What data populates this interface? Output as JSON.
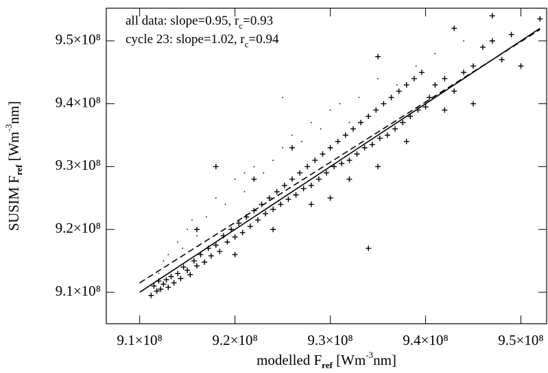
{
  "chart_data": {
    "type": "scatter",
    "xlabel": [
      "modelled F",
      "ref",
      " [Wm",
      "-3",
      "nm]"
    ],
    "ylabel": [
      "SUSIM F",
      "ref",
      " [Wm",
      "-3",
      "nm]"
    ],
    "annotations": [
      [
        "all data: slope=0.95, r",
        "c",
        "=0.93"
      ],
      [
        "cycle 23: slope=1.02, r",
        "c",
        "=0.94"
      ]
    ],
    "xlim": [
      906500000.0,
      952700000.0
    ],
    "ylim": [
      905000000.0,
      955200000.0
    ],
    "xticks": [
      {
        "value": 910000000.0,
        "label": "9.1×10⁸"
      },
      {
        "value": 920000000.0,
        "label": "9.2×10⁸"
      },
      {
        "value": 930000000.0,
        "label": "9.3×10⁸"
      },
      {
        "value": 940000000.0,
        "label": "9.4×10⁸"
      },
      {
        "value": 950000000.0,
        "label": "9.5×10⁸"
      }
    ],
    "yticks": [
      {
        "value": 910000000.0,
        "label": "9.1×10⁸"
      },
      {
        "value": 920000000.0,
        "label": "9.2×10⁸"
      },
      {
        "value": 930000000.0,
        "label": "9.3×10⁸"
      },
      {
        "value": 940000000.0,
        "label": "9.4×10⁸"
      },
      {
        "value": 950000000.0,
        "label": "9.5×10⁸"
      }
    ],
    "series": [
      {
        "marker": "plus",
        "color": "#000000",
        "x": [
          911200000.0,
          911500000.0,
          911800000.0,
          912000000.0,
          912200000.0,
          912500000.0,
          912800000.0,
          913000000.0,
          913300000.0,
          913600000.0,
          914000000.0,
          914300000.0,
          914600000.0,
          915000000.0,
          915300000.0,
          915700000.0,
          916000000.0,
          916400000.0,
          916800000.0,
          917200000.0,
          917500000.0,
          918000000.0,
          918400000.0,
          918800000.0,
          919200000.0,
          919600000.0,
          920000000.0,
          920400000.0,
          920800000.0,
          921200000.0,
          921600000.0,
          922000000.0,
          922400000.0,
          922800000.0,
          923200000.0,
          923600000.0,
          924000000.0,
          924400000.0,
          924800000.0,
          925200000.0,
          925600000.0,
          926000000.0,
          926400000.0,
          926800000.0,
          927200000.0,
          927600000.0,
          928000000.0,
          928400000.0,
          928800000.0,
          929200000.0,
          929600000.0,
          930000000.0,
          930400000.0,
          930800000.0,
          931200000.0,
          931600000.0,
          932000000.0,
          932400000.0,
          932800000.0,
          933200000.0,
          933600000.0,
          934000000.0,
          934400000.0,
          934800000.0,
          935200000.0,
          935600000.0,
          936000000.0,
          936400000.0,
          936800000.0,
          937200000.0,
          937600000.0,
          938000000.0,
          938400000.0,
          938800000.0,
          939200000.0,
          939600000.0,
          940000000.0,
          940400000.0,
          941000000.0,
          942000000.0,
          943000000.0,
          944000000.0,
          945000000.0,
          946000000.0,
          947000000.0,
          948000000.0,
          949000000.0,
          950000000.0,
          952000000.0,
          943000000.0,
          934000000.0,
          918000000.0,
          922000000.0,
          926000000.0,
          930000000.0,
          935000000.0,
          938000000.0,
          942000000.0,
          916000000.0,
          920000000.0,
          924000000.0,
          928000000.0,
          932000000.0,
          935000000.0,
          945000000.0,
          947000000.0
        ],
        "values": [
          909500000.0,
          911000000.0,
          910200000.0,
          911800000.0,
          910500000.0,
          911300000.0,
          912000000.0,
          910800000.0,
          912500000.0,
          911500000.0,
          913000000.0,
          912200000.0,
          914000000.0,
          913500000.0,
          912800000.0,
          915000000.0,
          914200000.0,
          916000000.0,
          914800000.0,
          917000000.0,
          915800000.0,
          917500000.0,
          916500000.0,
          919000000.0,
          918000000.0,
          920000000.0,
          918800000.0,
          921000000.0,
          919500000.0,
          922000000.0,
          920500000.0,
          923000000.0,
          921500000.0,
          924000000.0,
          922500000.0,
          925000000.0,
          923200000.0,
          926000000.0,
          924000000.0,
          927000000.0,
          924800000.0,
          928000000.0,
          925500000.0,
          929000000.0,
          926500000.0,
          930000000.0,
          927000000.0,
          931000000.0,
          928000000.0,
          932000000.0,
          929000000.0,
          933000000.0,
          930000000.0,
          934000000.0,
          930500000.0,
          935000000.0,
          931000000.0,
          936000000.0,
          932000000.0,
          937000000.0,
          933000000.0,
          938000000.0,
          933500000.0,
          939000000.0,
          934500000.0,
          940000000.0,
          935000000.0,
          941000000.0,
          936000000.0,
          942000000.0,
          937000000.0,
          943000000.0,
          938000000.0,
          944000000.0,
          939000000.0,
          945000000.0,
          939500000.0,
          941000000.0,
          943000000.0,
          944000000.0,
          942000000.0,
          945000000.0,
          946000000.0,
          949000000.0,
          950000000.0,
          947000000.0,
          951000000.0,
          946000000.0,
          953500000.0,
          952000000.0,
          917000000.0,
          930000000.0,
          928000000.0,
          933000000.0,
          925000000.0,
          930000000.0,
          934000000.0,
          939000000.0,
          920000000.0,
          916000000.0,
          920000000.0,
          924000000.0,
          928000000.0,
          947500000.0,
          940000000.0,
          954000000.0
        ]
      },
      {
        "marker": "dot",
        "color": "#000000",
        "x": [
          912000000.0,
          913000000.0,
          914000000.0,
          915000000.0,
          916000000.0,
          917000000.0,
          918000000.0,
          919000000.0,
          920000000.0,
          921000000.0,
          922000000.0,
          923000000.0,
          924000000.0,
          925000000.0,
          926000000.0,
          927000000.0,
          928000000.0,
          929000000.0,
          930000000.0,
          931000000.0,
          933000000.0,
          935000000.0,
          937000000.0,
          939000000.0,
          941000000.0,
          944000000.0,
          915500000.0,
          912500000.0,
          914500000.0,
          921000000.0,
          925000000.0,
          932000000.0
        ],
        "values": [
          913000000.0,
          916000000.0,
          918000000.0,
          920000000.0,
          919000000.0,
          922000000.0,
          925000000.0,
          924000000.0,
          928000000.0,
          926000000.0,
          930000000.0,
          929000000.0,
          931000000.0,
          933000000.0,
          935000000.0,
          934000000.0,
          937000000.0,
          936000000.0,
          939000000.0,
          940000000.0,
          941000000.0,
          944000000.0,
          943000000.0,
          946000000.0,
          948000000.0,
          950000000.0,
          921500000.0,
          915000000.0,
          917000000.0,
          929000000.0,
          941000000.0,
          937000000.0
        ]
      }
    ],
    "lines": [
      {
        "style": "solid",
        "x": [
          910000000.0,
          952000000.0
        ],
        "values": [
          910000000.0,
          952000000.0
        ]
      },
      {
        "style": "dashed",
        "x": [
          910000000.0,
          952000000.0
        ],
        "values": [
          911500000.0,
          951800000.0
        ]
      }
    ]
  }
}
